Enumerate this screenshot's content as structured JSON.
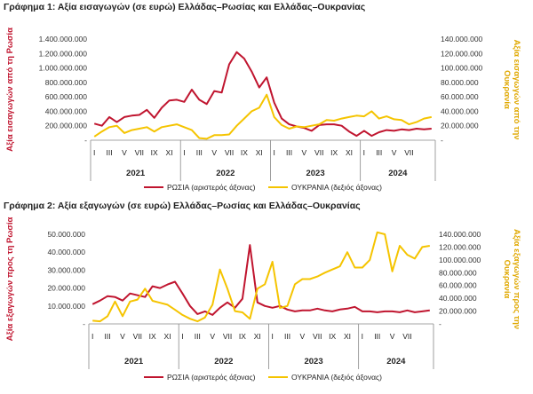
{
  "chart_data": [
    {
      "type": "line",
      "title": "Γράφημα 1: Αξία εισαγωγών (σε ευρώ) Ελλάδας–Ρωσίας και Ελλάδας–Ουκρανίας",
      "ylabel_left": "Αξία εισαγωγών από τη Ρωσία",
      "ylabel_right": "Αξία εισαγωγών από την Ουκρανία",
      "yticks_left": [
        "-",
        "200.000.000",
        "400.000.000",
        "600.000.000",
        "800.000.000",
        "1.000.000.000",
        "1.200.000.000",
        "1.400.000.000"
      ],
      "yticks_right": [
        "-",
        "20.000.000",
        "40.000.000",
        "60.000.000",
        "80.000.000",
        "100.000.000",
        "120.000.000",
        "140.000.000"
      ],
      "ylim_left": [
        0,
        1400000000
      ],
      "ylim_right": [
        0,
        140000000
      ],
      "x_month_labels": [
        "I",
        "III",
        "V",
        "VII",
        "IX",
        "XI",
        "I",
        "III",
        "V",
        "VII",
        "IX",
        "XI",
        "I",
        "III",
        "V",
        "VII",
        "IX",
        "XI",
        "I",
        "III",
        "V",
        "VII"
      ],
      "x_year_labels": [
        "2021",
        "2022",
        "2023",
        "2024"
      ],
      "legend_placement": "bottom",
      "series": [
        {
          "name": "ΡΩΣΙΑ (αριστερός άξονας)",
          "axis": "left",
          "color": "#c0152f",
          "values": [
            230000000,
            200000000,
            320000000,
            250000000,
            320000000,
            340000000,
            350000000,
            420000000,
            310000000,
            450000000,
            550000000,
            560000000,
            530000000,
            700000000,
            560000000,
            500000000,
            680000000,
            660000000,
            1050000000,
            1220000000,
            1130000000,
            950000000,
            730000000,
            870000000,
            520000000,
            300000000,
            220000000,
            190000000,
            170000000,
            130000000,
            210000000,
            220000000,
            220000000,
            200000000,
            120000000,
            60000000,
            130000000,
            60000000,
            110000000,
            140000000,
            130000000,
            150000000,
            140000000,
            160000000,
            150000000,
            160000000
          ]
        },
        {
          "name": "ΟΥΚΡΑΝΙΑ (δεξιός άξονας)",
          "axis": "right",
          "color": "#f5c400",
          "values": [
            5000000,
            12000000,
            18000000,
            20000000,
            10000000,
            14000000,
            16000000,
            18000000,
            12000000,
            18000000,
            20000000,
            22000000,
            18000000,
            14000000,
            3000000,
            2000000,
            7000000,
            7000000,
            8000000,
            20000000,
            30000000,
            40000000,
            45000000,
            63000000,
            32000000,
            21000000,
            16000000,
            19000000,
            18000000,
            20000000,
            22000000,
            28000000,
            27000000,
            30000000,
            32000000,
            34000000,
            33000000,
            40000000,
            30000000,
            33000000,
            29000000,
            28000000,
            22000000,
            25000000,
            30000000,
            32000000
          ]
        }
      ]
    },
    {
      "type": "line",
      "title": "Γράφημα 2: Αξία εξαγωγών (σε ευρώ) Ελλάδας–Ρωσίας και Ελλάδας–Ουκρανίας",
      "ylabel_left": "Αξία εξαγωγών προς τη Ρωσία",
      "ylabel_right": "Αξία εξαγωγών προς την Ουκρανία",
      "yticks_left": [
        "-",
        "10.000.000",
        "20.000.000",
        "30.000.000",
        "40.000.000",
        "50.000.000"
      ],
      "yticks_right": [
        "-",
        "20.000.000",
        "40.000.000",
        "60.000.000",
        "80.000.000",
        "100.000.000",
        "120.000.000",
        "140.000.000"
      ],
      "ylim_left": [
        0,
        50000000
      ],
      "ylim_right": [
        0,
        140000000
      ],
      "x_month_labels": [
        "I",
        "III",
        "V",
        "VII",
        "IX",
        "XI",
        "I",
        "III",
        "V",
        "VII",
        "IX",
        "XI",
        "I",
        "III",
        "V",
        "VII",
        "IX",
        "XI",
        "I",
        "III",
        "V",
        "VII"
      ],
      "x_year_labels": [
        "2021",
        "2022",
        "2023",
        "2024"
      ],
      "legend_placement": "bottom",
      "series": [
        {
          "name": "ΡΩΣΙΑ (αριστερός άξονας)",
          "axis": "left",
          "color": "#c0152f",
          "values": [
            11000000,
            13000000,
            15500000,
            15000000,
            13000000,
            17000000,
            16000000,
            15000000,
            21000000,
            20000000,
            22000000,
            23500000,
            17000000,
            10000000,
            5500000,
            7000000,
            5000000,
            9000000,
            12000000,
            9000000,
            14000000,
            44000000,
            12000000,
            10000000,
            9000000,
            10000000,
            8000000,
            7000000,
            7500000,
            7500000,
            8500000,
            7500000,
            7000000,
            8000000,
            8500000,
            9500000,
            7000000,
            7000000,
            6500000,
            7000000,
            7000000,
            6500000,
            7500000,
            6500000,
            7000000,
            7500000
          ]
        },
        {
          "name": "ΟΥΚΡΑΝΙΑ (δεξιός άξονας)",
          "axis": "right",
          "color": "#f5c400",
          "values": [
            5000000,
            4000000,
            12000000,
            35000000,
            12000000,
            35000000,
            38000000,
            55000000,
            36000000,
            33000000,
            30000000,
            22000000,
            14000000,
            8000000,
            4000000,
            10000000,
            30000000,
            85000000,
            55000000,
            20000000,
            18000000,
            8000000,
            55000000,
            62000000,
            97000000,
            25000000,
            28000000,
            62000000,
            70000000,
            70000000,
            74000000,
            80000000,
            85000000,
            90000000,
            112000000,
            88000000,
            88000000,
            100000000,
            143000000,
            140000000,
            82000000,
            122000000,
            108000000,
            102000000,
            120000000,
            122000000
          ]
        }
      ]
    }
  ]
}
